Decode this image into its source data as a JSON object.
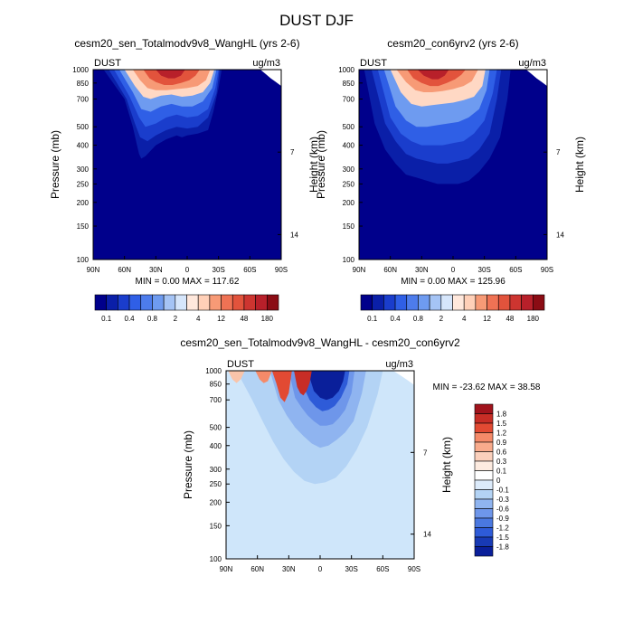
{
  "figure": {
    "title": "DUST DJF"
  },
  "colors": {
    "background_fill": "#00008b",
    "diff_background_fill": "#cfe6fa",
    "axis": "#000000"
  },
  "chart_data": [
    {
      "type": "heatmap",
      "id": "panel-sen",
      "title": "cesm20_sen_Totalmodv9v8_WangHL (yrs 2-6)",
      "left_label": "DUST",
      "right_label": "ug/m3",
      "ylabel": "Pressure (mb)",
      "y2label": "Height (km)",
      "x_ticks": [
        "90N",
        "60N",
        "30N",
        "0",
        "30S",
        "60S",
        "90S"
      ],
      "x_tick_values": [
        90,
        60,
        30,
        0,
        -30,
        -60,
        -90
      ],
      "y_ticks": [
        "100",
        "150",
        "200",
        "250",
        "300",
        "400",
        "500",
        "700",
        "850",
        "1000"
      ],
      "y_tick_values": [
        100,
        150,
        200,
        250,
        300,
        400,
        500,
        700,
        850,
        1000
      ],
      "y2_ticks": [
        "14",
        "7"
      ],
      "y2_tick_values_km": [
        14,
        7
      ],
      "xlim": [
        90,
        -90
      ],
      "ylim": [
        1000,
        100
      ],
      "stats": "MIN =   0.00  MAX = 117.62",
      "min": 0.0,
      "max": 117.62,
      "contours": [
        {
          "level": "0.1",
          "color": "#0a1fa8",
          "lat": [
            80,
            60,
            52,
            48,
            46,
            44,
            40,
            30,
            20,
            10,
            5,
            0,
            -10,
            -20,
            -25,
            -30,
            -33
          ],
          "top_p": [
            1000,
            700,
            500,
            400,
            360,
            340,
            350,
            400,
            430,
            450,
            440,
            450,
            460,
            480,
            600,
            800,
            1000
          ]
        },
        {
          "level": "0.4",
          "color": "#1a3dcc",
          "lat": [
            75,
            58,
            50,
            45,
            38,
            30,
            20,
            10,
            0,
            -10,
            -20,
            -28,
            -31
          ],
          "top_p": [
            1000,
            700,
            520,
            440,
            420,
            450,
            480,
            500,
            490,
            500,
            560,
            750,
            1000
          ]
        },
        {
          "level": "0.8",
          "color": "#2f5fe6",
          "lat": [
            70,
            55,
            46,
            40,
            30,
            20,
            10,
            0,
            -10,
            -20,
            -27,
            -30
          ],
          "top_p": [
            1000,
            720,
            560,
            500,
            520,
            560,
            580,
            560,
            570,
            620,
            800,
            1000
          ]
        },
        {
          "level": "2",
          "color": "#6e9bf0",
          "lat": [
            65,
            52,
            44,
            35,
            25,
            15,
            5,
            -5,
            -15,
            -24,
            -28
          ],
          "top_p": [
            1000,
            760,
            620,
            600,
            640,
            660,
            640,
            640,
            680,
            800,
            1000
          ]
        },
        {
          "level": "4",
          "color": "#ffd8c4",
          "lat": [
            60,
            50,
            42,
            35,
            25,
            15,
            5,
            -5,
            -15,
            -22,
            -26
          ],
          "top_p": [
            1000,
            820,
            720,
            700,
            730,
            740,
            720,
            730,
            760,
            850,
            1000
          ]
        },
        {
          "level": "12",
          "color": "#f79a76",
          "lat": [
            52,
            45,
            38,
            30,
            20,
            10,
            0,
            -10,
            -18,
            -22
          ],
          "top_p": [
            1000,
            880,
            800,
            780,
            780,
            790,
            800,
            820,
            880,
            1000
          ]
        },
        {
          "level": "48",
          "color": "#e2533c",
          "lat": [
            42,
            36,
            30,
            22,
            14,
            6,
            -2,
            -8,
            -12
          ],
          "top_p": [
            1000,
            900,
            860,
            830,
            830,
            850,
            880,
            930,
            1000
          ]
        },
        {
          "level": "180",
          "color": "#b8202a",
          "lat": [
            30,
            25,
            18,
            12,
            6,
            2
          ],
          "top_p": [
            1000,
            930,
            900,
            900,
            930,
            1000
          ]
        }
      ],
      "missing_region": {
        "lat": [
          -70,
          -75,
          -80,
          -85,
          -90,
          -90
        ],
        "bottom_p": [
          1000,
          950,
          900,
          860,
          820,
          1000
        ]
      }
    },
    {
      "type": "heatmap",
      "id": "panel-con",
      "title": "cesm20_con6yrv2 (yrs 2-6)",
      "left_label": "DUST",
      "right_label": "ug/m3",
      "ylabel": "Pressure (mb)",
      "y2label": "Height (km)",
      "x_ticks": [
        "90N",
        "60N",
        "30N",
        "0",
        "30S",
        "60S",
        "90S"
      ],
      "x_tick_values": [
        90,
        60,
        30,
        0,
        -30,
        -60,
        -90
      ],
      "y_ticks": [
        "100",
        "150",
        "200",
        "250",
        "300",
        "400",
        "500",
        "700",
        "850",
        "1000"
      ],
      "y_tick_values": [
        100,
        150,
        200,
        250,
        300,
        400,
        500,
        700,
        850,
        1000
      ],
      "y2_ticks": [
        "14",
        "7"
      ],
      "y2_tick_values_km": [
        14,
        7
      ],
      "xlim": [
        90,
        -90
      ],
      "ylim": [
        1000,
        100
      ],
      "stats": "MIN =   0.00  MAX = 125.96",
      "min": 0.0,
      "max": 125.96,
      "contours": [
        {
          "level": "0.1",
          "color": "#0a1fa8",
          "lat": [
            85,
            75,
            65,
            55,
            45,
            35,
            25,
            15,
            5,
            -5,
            -15,
            -25,
            -35,
            -45,
            -52,
            -55
          ],
          "top_p": [
            1000,
            520,
            380,
            320,
            280,
            270,
            260,
            250,
            250,
            250,
            260,
            290,
            340,
            440,
            700,
            1000
          ]
        },
        {
          "level": "0.4",
          "color": "#1a3dcc",
          "lat": [
            78,
            65,
            55,
            45,
            35,
            25,
            15,
            5,
            -5,
            -15,
            -25,
            -35,
            -42,
            -46
          ],
          "top_p": [
            1000,
            520,
            420,
            360,
            340,
            330,
            320,
            320,
            330,
            340,
            380,
            460,
            700,
            1000
          ]
        },
        {
          "level": "0.8",
          "color": "#2f5fe6",
          "lat": [
            72,
            60,
            50,
            40,
            30,
            20,
            10,
            0,
            -10,
            -20,
            -30,
            -38,
            -42
          ],
          "top_p": [
            1000,
            560,
            460,
            420,
            400,
            400,
            400,
            410,
            420,
            460,
            540,
            750,
            1000
          ]
        },
        {
          "level": "2",
          "color": "#6e9bf0",
          "lat": [
            66,
            55,
            45,
            35,
            25,
            15,
            5,
            -5,
            -15,
            -25,
            -32,
            -35
          ],
          "top_p": [
            1000,
            640,
            540,
            500,
            500,
            510,
            520,
            530,
            560,
            620,
            780,
            1000
          ]
        },
        {
          "level": "4",
          "color": "#ffd8c4",
          "lat": [
            60,
            50,
            40,
            30,
            20,
            10,
            0,
            -10,
            -20,
            -28,
            -31
          ],
          "top_p": [
            1000,
            760,
            660,
            640,
            650,
            660,
            670,
            690,
            720,
            820,
            1000
          ]
        },
        {
          "level": "12",
          "color": "#f79a76",
          "lat": [
            54,
            45,
            36,
            28,
            20,
            10,
            0,
            -10,
            -18,
            -24
          ],
          "top_p": [
            1000,
            860,
            780,
            760,
            760,
            770,
            790,
            820,
            870,
            1000
          ]
        },
        {
          "level": "48",
          "color": "#e2533c",
          "lat": [
            44,
            38,
            30,
            22,
            14,
            6,
            -2,
            -8,
            -12
          ],
          "top_p": [
            1000,
            900,
            850,
            820,
            820,
            850,
            890,
            940,
            1000
          ]
        },
        {
          "level": "180",
          "color": "#b8202a",
          "lat": [
            34,
            28,
            20,
            14,
            8,
            4
          ],
          "top_p": [
            1000,
            930,
            890,
            890,
            930,
            1000
          ]
        }
      ],
      "missing_region": {
        "lat": [
          -70,
          -75,
          -80,
          -85,
          -90,
          -90
        ],
        "bottom_p": [
          1000,
          950,
          900,
          860,
          820,
          1000
        ]
      }
    },
    {
      "type": "heatmap",
      "id": "panel-diff",
      "title": "cesm20_sen_Totalmodv9v8_WangHL - cesm20_con6yrv2",
      "left_label": "DUST",
      "right_label": "ug/m3",
      "ylabel": "Pressure (mb)",
      "y2label": "Height (km)",
      "x_ticks": [
        "90N",
        "60N",
        "30N",
        "0",
        "30S",
        "60S",
        "90S"
      ],
      "x_tick_values": [
        90,
        60,
        30,
        0,
        -30,
        -60,
        -90
      ],
      "y_ticks": [
        "100",
        "150",
        "200",
        "250",
        "300",
        "400",
        "500",
        "700",
        "850",
        "1000"
      ],
      "y_tick_values": [
        100,
        150,
        200,
        250,
        300,
        400,
        500,
        700,
        850,
        1000
      ],
      "y2_ticks": [
        "14",
        "7"
      ],
      "y2_tick_values_km": [
        14,
        7
      ],
      "xlim": [
        90,
        -90
      ],
      "ylim": [
        1000,
        100
      ],
      "stats": "MIN = -23.62  MAX =  38.58",
      "min": -23.62,
      "max": 38.58,
      "contours": [
        {
          "level": "-0.1",
          "color": "#b3d3f5",
          "lat": [
            80,
            65,
            55,
            45,
            35,
            25,
            15,
            5,
            -5,
            -15,
            -25,
            -35,
            -45,
            -55,
            -60
          ],
          "top_p": [
            1000,
            700,
            540,
            420,
            340,
            290,
            260,
            250,
            255,
            270,
            310,
            380,
            500,
            750,
            1000
          ]
        },
        {
          "level": "-0.3",
          "color": "#8fb4f0",
          "lat": [
            48,
            40,
            32,
            24,
            16,
            8,
            0,
            -8,
            -16,
            -24,
            -32,
            -40,
            -44
          ],
          "top_p": [
            1000,
            700,
            580,
            500,
            450,
            410,
            390,
            400,
            430,
            470,
            540,
            760,
            1000
          ]
        },
        {
          "level": "-0.6",
          "color": "#6e96ea",
          "lat": [
            30,
            24,
            18,
            12,
            6,
            0,
            -6,
            -12,
            -18,
            -24,
            -30,
            -33
          ],
          "top_p": [
            1000,
            720,
            640,
            580,
            540,
            510,
            510,
            520,
            560,
            620,
            760,
            1000
          ]
        },
        {
          "level": "-1.2",
          "color": "#2e5bd8",
          "lat": [
            18,
            14,
            10,
            4,
            -2,
            -8,
            -14,
            -20,
            -26,
            -28
          ],
          "top_p": [
            1000,
            780,
            700,
            640,
            610,
            620,
            650,
            720,
            850,
            1000
          ]
        },
        {
          "level": "-1.8",
          "color": "#0a1f9a",
          "lat": [
            12,
            6,
            0,
            -6,
            -12,
            -18,
            -22,
            -24
          ],
          "top_p": [
            1000,
            780,
            720,
            700,
            720,
            780,
            880,
            1000
          ]
        }
      ],
      "positive_blobs": [
        {
          "level": "1.8",
          "color": "#a1131c",
          "lat": [
            40,
            38,
            36,
            34,
            32,
            30,
            28
          ],
          "top_p": [
            1000,
            880,
            760,
            700,
            760,
            880,
            1000
          ]
        },
        {
          "level": "0.9",
          "color": "#e24a33",
          "lat": [
            46,
            42,
            38,
            34,
            30,
            27
          ],
          "top_p": [
            1000,
            860,
            720,
            680,
            760,
            1000
          ]
        },
        {
          "level": "1.5",
          "color": "#c72d26",
          "lat": [
            25,
            22,
            19,
            16,
            13,
            10,
            8
          ],
          "top_p": [
            1000,
            820,
            760,
            740,
            780,
            860,
            1000
          ]
        },
        {
          "level": "0.3",
          "color": "#f9c4aa",
          "lat": [
            88,
            84,
            80,
            76,
            72
          ],
          "top_p": [
            1000,
            900,
            860,
            900,
            1000
          ]
        },
        {
          "level": "0.6",
          "color": "#f58a69",
          "lat": [
            62,
            58,
            54,
            50,
            46
          ],
          "top_p": [
            1000,
            900,
            860,
            880,
            1000
          ]
        }
      ],
      "missing_region": {
        "lat": [
          -70,
          -75,
          -80,
          -85,
          -90,
          -90
        ],
        "bottom_p": [
          1000,
          960,
          920,
          880,
          840,
          1000
        ]
      }
    }
  ],
  "colorbar_top": {
    "colors": [
      "#00008b",
      "#0a1fa8",
      "#1a3dcc",
      "#2f5fe6",
      "#4d7cec",
      "#6e9bf0",
      "#a5c4f5",
      "#d6e6fb",
      "#ffe8dc",
      "#ffd0b8",
      "#f79a76",
      "#ef7254",
      "#e2533c",
      "#cd3530",
      "#b8202a",
      "#8b0c14"
    ],
    "labels": [
      "0.1",
      "0.4",
      "0.8",
      "2",
      "4",
      "12",
      "48",
      "180"
    ]
  },
  "colorbar_diff": {
    "colors": [
      "#a1131c",
      "#c72d26",
      "#e24a33",
      "#f58a69",
      "#f9ab8c",
      "#fbd0bc",
      "#fdebe0",
      "#ffffff",
      "#dcebfb",
      "#b3d3f5",
      "#8fb4f0",
      "#6e96ea",
      "#4a78e0",
      "#2e5bd8",
      "#183ab5",
      "#0a1f9a"
    ],
    "labels": [
      "1.8",
      "1.5",
      "1.2",
      "0.9",
      "0.6",
      "0.3",
      "0.1",
      "0",
      "-0.1",
      "-0.3",
      "-0.6",
      "-0.9",
      "-1.2",
      "-1.5",
      "-1.8"
    ]
  }
}
